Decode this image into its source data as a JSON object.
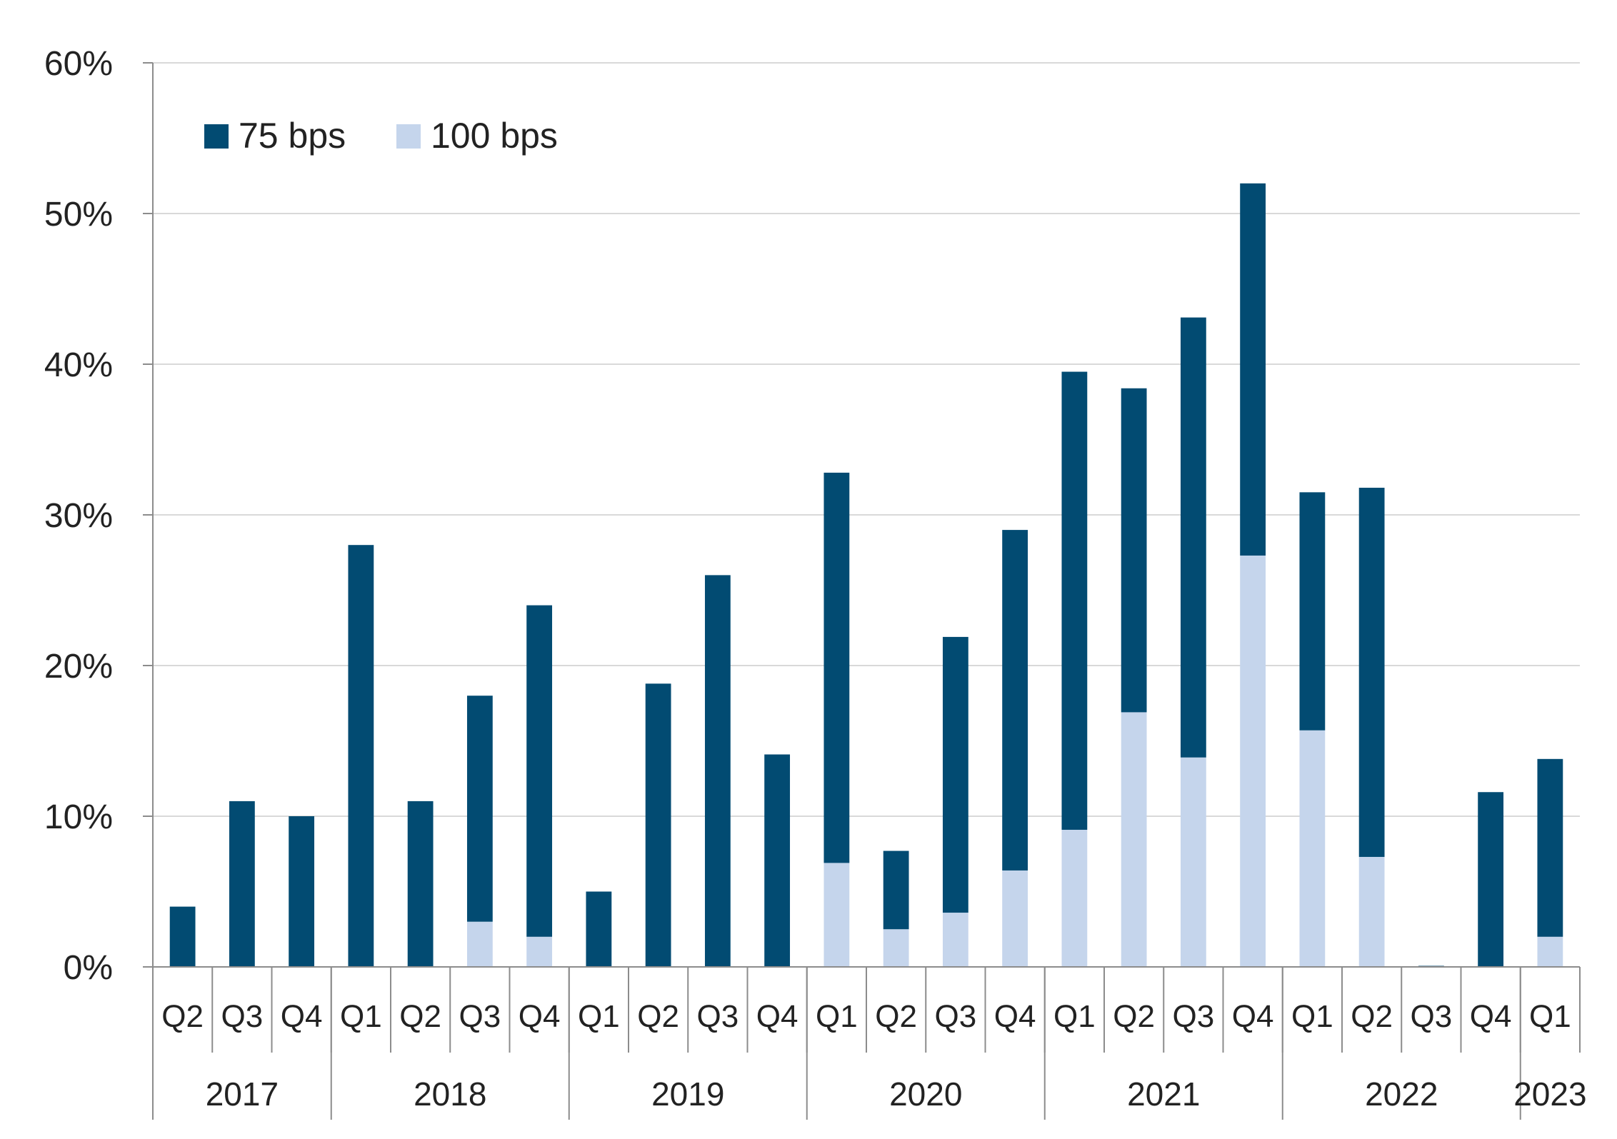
{
  "chart_data": {
    "type": "bar",
    "stacked": true,
    "categories": [
      "Q2",
      "Q3",
      "Q4",
      "Q1",
      "Q2",
      "Q3",
      "Q4",
      "Q1",
      "Q2",
      "Q3",
      "Q4",
      "Q1",
      "Q2",
      "Q3",
      "Q4",
      "Q1",
      "Q2",
      "Q3",
      "Q4",
      "Q1",
      "Q2",
      "Q3",
      "Q4",
      "Q1"
    ],
    "years": [
      {
        "label": "2017",
        "count": 3
      },
      {
        "label": "2018",
        "count": 4
      },
      {
        "label": "2019",
        "count": 4
      },
      {
        "label": "2020",
        "count": 4
      },
      {
        "label": "2021",
        "count": 4
      },
      {
        "label": "2022",
        "count": 4
      },
      {
        "label": "2023",
        "count": 1
      }
    ],
    "series": [
      {
        "name": "100 bps",
        "color": "#c5d5ec",
        "values": [
          0,
          0,
          0,
          0,
          0,
          3,
          2,
          0,
          0,
          0,
          0,
          6.9,
          2.5,
          3.6,
          6.4,
          9.1,
          16.9,
          13.9,
          27.3,
          15.7,
          7.3,
          0,
          0,
          2
        ]
      },
      {
        "name": "75 bps",
        "color": "#024b72",
        "values": [
          4,
          11,
          10,
          28,
          11,
          15,
          22,
          5,
          18.8,
          26,
          14.1,
          25.9,
          5.2,
          18.3,
          22.6,
          30.4,
          21.5,
          29.2,
          24.7,
          15.8,
          24.5,
          0,
          11.6,
          11.8
        ]
      }
    ],
    "legend_order": [
      "75 bps",
      "100 bps"
    ],
    "legend_position": "top-left",
    "yticks": [
      "0%",
      "10%",
      "20%",
      "30%",
      "40%",
      "50%",
      "60%"
    ],
    "ylim": [
      0,
      60
    ],
    "grid": true,
    "title": "",
    "xlabel": "",
    "ylabel": ""
  }
}
